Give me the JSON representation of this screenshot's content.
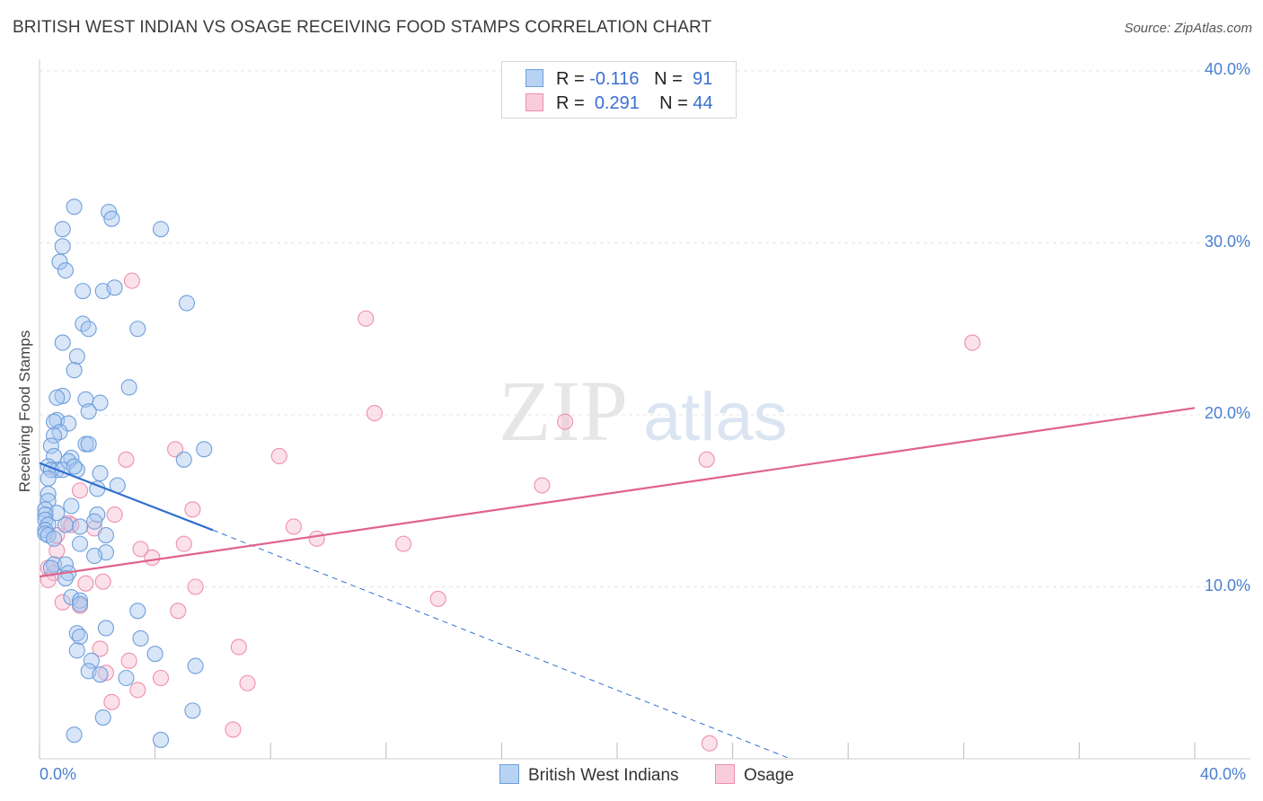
{
  "header": {
    "title": "BRITISH WEST INDIAN VS OSAGE RECEIVING FOOD STAMPS CORRELATION CHART",
    "source": "Source: ZipAtlas.com"
  },
  "legend_top": {
    "rows": [
      {
        "r_label": "R =",
        "r_value": "-0.116",
        "n_label": "N =",
        "n_value": "91"
      },
      {
        "r_label": "R =",
        "r_value": "0.291",
        "n_label": "N =",
        "n_value": "44"
      }
    ]
  },
  "legend_bottom": {
    "series1": "British West Indians",
    "series2": "Osage"
  },
  "watermark": {
    "zip": "ZIP",
    "atlas": "atlas"
  },
  "colors": {
    "blue_fill": "#a9c8f0",
    "blue_stroke": "#6f9fdc",
    "blue_line": "#2f6fd0",
    "pink_fill": "#f6bfd0",
    "pink_stroke": "#ee8fac",
    "pink_line": "#e0628e",
    "tick_text": "#4a7fd0",
    "grid": "#e4e4e4"
  },
  "chart_data": {
    "type": "scatter",
    "title": "BRITISH WEST INDIAN VS OSAGE RECEIVING FOOD STAMPS CORRELATION CHART",
    "xlabel": "",
    "ylabel": "Receiving Food Stamps",
    "xlim": [
      0,
      40
    ],
    "ylim": [
      0,
      40
    ],
    "x_ticks": [
      "0.0%",
      "40.0%"
    ],
    "y_ticks": [
      "10.0%",
      "20.0%",
      "30.0%",
      "40.0%"
    ],
    "y_tick_values": [
      10,
      20,
      30,
      40
    ],
    "grid": true,
    "series": [
      {
        "name": "British West Indians",
        "r": -0.116,
        "n": 91,
        "trend": {
          "x0": 0,
          "y0": 17.2,
          "x1": 6.0,
          "y1": 13.3,
          "dash_to_x": 26,
          "dash_to_y": 0
        },
        "points": [
          [
            1.2,
            32.1
          ],
          [
            2.4,
            31.8
          ],
          [
            2.5,
            31.4
          ],
          [
            4.2,
            30.8
          ],
          [
            0.8,
            30.8
          ],
          [
            0.8,
            29.8
          ],
          [
            0.7,
            28.9
          ],
          [
            0.9,
            28.4
          ],
          [
            1.5,
            27.2
          ],
          [
            2.2,
            27.2
          ],
          [
            2.6,
            27.4
          ],
          [
            5.1,
            26.5
          ],
          [
            1.5,
            25.3
          ],
          [
            1.7,
            25.0
          ],
          [
            3.4,
            25.0
          ],
          [
            0.8,
            24.2
          ],
          [
            1.3,
            23.4
          ],
          [
            1.2,
            22.6
          ],
          [
            3.1,
            21.6
          ],
          [
            0.8,
            21.1
          ],
          [
            0.6,
            21.0
          ],
          [
            1.6,
            20.9
          ],
          [
            2.1,
            20.7
          ],
          [
            1.7,
            20.2
          ],
          [
            0.6,
            19.7
          ],
          [
            0.5,
            19.6
          ],
          [
            1.0,
            19.5
          ],
          [
            0.7,
            19.0
          ],
          [
            0.5,
            18.8
          ],
          [
            0.4,
            18.2
          ],
          [
            1.6,
            18.3
          ],
          [
            1.7,
            18.3
          ],
          [
            5.7,
            18.0
          ],
          [
            0.5,
            17.6
          ],
          [
            1.1,
            17.5
          ],
          [
            1.0,
            17.3
          ],
          [
            5.0,
            17.4
          ],
          [
            0.3,
            17.0
          ],
          [
            0.6,
            16.8
          ],
          [
            1.3,
            16.8
          ],
          [
            0.4,
            16.8
          ],
          [
            2.1,
            16.6
          ],
          [
            0.3,
            16.3
          ],
          [
            2.7,
            15.9
          ],
          [
            2.0,
            15.7
          ],
          [
            0.3,
            15.4
          ],
          [
            0.3,
            15.0
          ],
          [
            1.1,
            14.7
          ],
          [
            0.2,
            14.5
          ],
          [
            0.6,
            14.3
          ],
          [
            0.2,
            14.2
          ],
          [
            2.0,
            14.2
          ],
          [
            0.2,
            13.9
          ],
          [
            1.9,
            13.8
          ],
          [
            0.3,
            13.6
          ],
          [
            0.9,
            13.6
          ],
          [
            1.4,
            13.5
          ],
          [
            0.2,
            13.3
          ],
          [
            0.2,
            13.1
          ],
          [
            0.3,
            13.0
          ],
          [
            2.3,
            13.0
          ],
          [
            1.4,
            12.5
          ],
          [
            2.3,
            12.0
          ],
          [
            1.9,
            11.8
          ],
          [
            0.5,
            11.3
          ],
          [
            0.9,
            11.3
          ],
          [
            0.4,
            11.1
          ],
          [
            1.0,
            10.8
          ],
          [
            0.9,
            10.5
          ],
          [
            1.1,
            9.4
          ],
          [
            1.4,
            9.2
          ],
          [
            1.4,
            9.0
          ],
          [
            3.4,
            8.6
          ],
          [
            2.3,
            7.6
          ],
          [
            1.3,
            7.3
          ],
          [
            1.4,
            7.1
          ],
          [
            3.5,
            7.0
          ],
          [
            1.3,
            6.3
          ],
          [
            4.0,
            6.1
          ],
          [
            1.8,
            5.7
          ],
          [
            5.4,
            5.4
          ],
          [
            1.7,
            5.1
          ],
          [
            2.1,
            4.9
          ],
          [
            3.0,
            4.7
          ],
          [
            5.3,
            2.8
          ],
          [
            2.2,
            2.4
          ],
          [
            1.2,
            1.4
          ],
          [
            4.2,
            1.1
          ],
          [
            0.5,
            12.8
          ],
          [
            0.8,
            16.8
          ],
          [
            1.2,
            17.0
          ]
        ]
      },
      {
        "name": "Osage",
        "r": 0.291,
        "n": 44,
        "trend": {
          "x0": 0,
          "y0": 10.6,
          "x1": 40,
          "y1": 20.4
        },
        "points": [
          [
            3.2,
            27.8
          ],
          [
            11.3,
            25.6
          ],
          [
            32.3,
            24.2
          ],
          [
            11.6,
            20.1
          ],
          [
            18.2,
            19.6
          ],
          [
            4.7,
            18.0
          ],
          [
            8.3,
            17.6
          ],
          [
            3.0,
            17.4
          ],
          [
            23.1,
            17.4
          ],
          [
            17.4,
            15.9
          ],
          [
            1.4,
            15.6
          ],
          [
            5.3,
            14.5
          ],
          [
            2.6,
            14.2
          ],
          [
            1.0,
            13.7
          ],
          [
            1.1,
            13.6
          ],
          [
            8.8,
            13.5
          ],
          [
            1.9,
            13.4
          ],
          [
            9.6,
            12.8
          ],
          [
            5.0,
            12.5
          ],
          [
            12.6,
            12.5
          ],
          [
            3.5,
            12.2
          ],
          [
            0.6,
            12.1
          ],
          [
            3.9,
            11.7
          ],
          [
            0.3,
            11.1
          ],
          [
            0.5,
            10.8
          ],
          [
            0.3,
            10.4
          ],
          [
            2.2,
            10.3
          ],
          [
            1.6,
            10.2
          ],
          [
            5.4,
            10.0
          ],
          [
            0.8,
            9.1
          ],
          [
            13.8,
            9.3
          ],
          [
            1.4,
            8.9
          ],
          [
            4.8,
            8.6
          ],
          [
            6.9,
            6.5
          ],
          [
            2.1,
            6.4
          ],
          [
            3.1,
            5.7
          ],
          [
            2.3,
            5.0
          ],
          [
            4.2,
            4.7
          ],
          [
            7.2,
            4.4
          ],
          [
            3.4,
            4.0
          ],
          [
            2.5,
            3.3
          ],
          [
            6.7,
            1.7
          ],
          [
            23.2,
            0.9
          ],
          [
            0.6,
            13.0
          ]
        ]
      }
    ]
  }
}
